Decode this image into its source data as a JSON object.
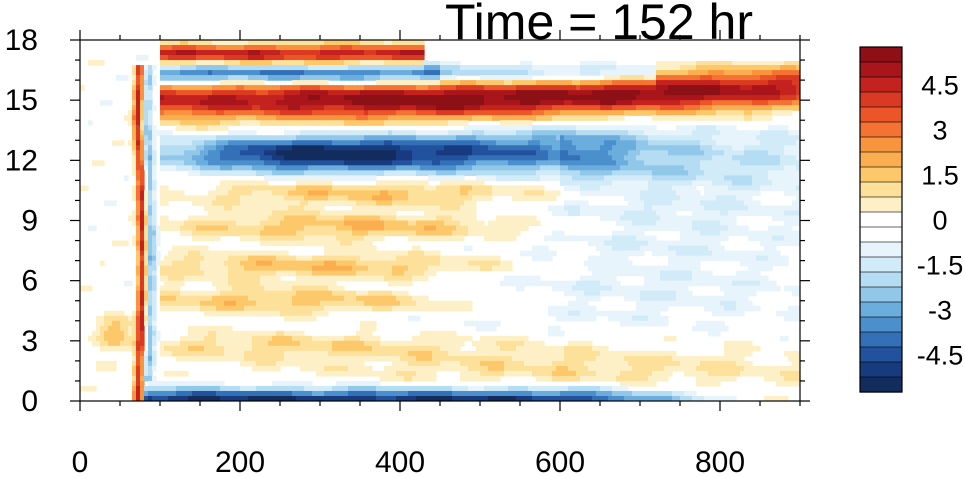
{
  "title": "Time = 152 hr",
  "chart_data": {
    "type": "heatmap",
    "title": "Time = 152 hr",
    "xlabel": "",
    "ylabel": "",
    "xlim": [
      0,
      900
    ],
    "ylim": [
      0,
      18
    ],
    "x_ticks": [
      "0",
      "200",
      "400",
      "600",
      "800"
    ],
    "y_ticks": [
      "0",
      "3",
      "6",
      "9",
      "12",
      "15",
      "18"
    ],
    "legend": {
      "placement": "right",
      "labels": [
        "4.5",
        "3",
        "1.5",
        "0",
        "-1.5",
        "-3",
        "-4.5"
      ],
      "levels": [
        5.5,
        5,
        4.5,
        4,
        3.5,
        3,
        2.5,
        2,
        1.5,
        1,
        0.5,
        0,
        -0.5,
        -1,
        -1.5,
        -2,
        -2.5,
        -3,
        -3.5,
        -4,
        -4.5,
        -5,
        -5.5
      ],
      "colors": [
        "#8c1016",
        "#a8151a",
        "#c4221f",
        "#db3a22",
        "#ec5527",
        "#f47332",
        "#f8933e",
        "#fbae4f",
        "#fcc86a",
        "#fde09a",
        "#fef0c6",
        "#ffffff",
        "#ffffff",
        "#e8f4fb",
        "#d2ebf8",
        "#b4dcf3",
        "#91c8ea",
        "#6baede",
        "#4b8fcd",
        "#3370b8",
        "#22519e",
        "#183b80",
        "#132c5e"
      ]
    },
    "features": [
      {
        "name": "near-surface negative band",
        "x": [
          75,
          900
        ],
        "y": [
          0,
          1
        ],
        "peak": -5
      },
      {
        "name": "tilted leading front",
        "x": [
          70,
          105
        ],
        "y": [
          0,
          16.5
        ],
        "peak": 5
      },
      {
        "name": "upper negative band",
        "x": [
          100,
          900
        ],
        "y": [
          10.8,
          13.5
        ],
        "peak": -5.5,
        "center": [
          300,
          12.2
        ]
      },
      {
        "name": "upper positive band",
        "x": [
          100,
          900
        ],
        "y": [
          13.5,
          16.8
        ],
        "peak": 5.5,
        "center": [
          440,
          15
        ]
      },
      {
        "name": "topmost negative band",
        "x": [
          100,
          700
        ],
        "y": [
          15.5,
          17.3
        ],
        "peak": -4.5
      },
      {
        "name": "top positive sliver",
        "x": [
          100,
          420
        ],
        "y": [
          17,
          18
        ],
        "peak": 4.5
      },
      {
        "name": "mid-level positive bands",
        "x": [
          100,
          800
        ],
        "y": [
          1.5,
          11
        ],
        "peak": 2.5
      }
    ]
  }
}
